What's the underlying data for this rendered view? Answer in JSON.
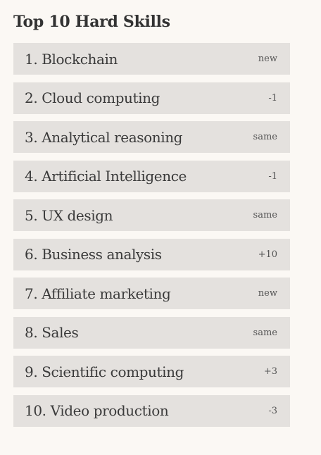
{
  "title": "Top 10 Hard Skills",
  "skills": [
    {
      "label": "1. Blockchain",
      "change": "new"
    },
    {
      "label": "2. Cloud computing",
      "change": "-1"
    },
    {
      "label": "3. Analytical reasoning",
      "change": "same"
    },
    {
      "label": "4. Artificial Intelligence",
      "change": "-1"
    },
    {
      "label": "5. UX design",
      "change": "same"
    },
    {
      "label": "6. Business analysis",
      "change": "+10"
    },
    {
      "label": "7. Affiliate marketing",
      "change": "new"
    },
    {
      "label": "8. Sales",
      "change": "same"
    },
    {
      "label": "9. Scientific computing",
      "change": "+3"
    },
    {
      "label": "10. Video production",
      "change": "-3"
    }
  ]
}
